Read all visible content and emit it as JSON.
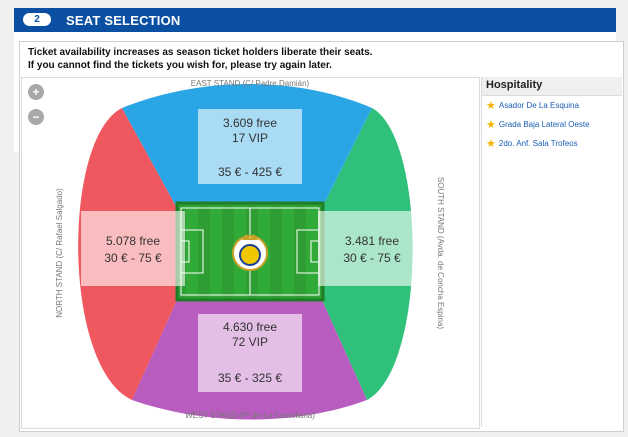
{
  "header": {
    "step": "2",
    "title": "SEAT SELECTION"
  },
  "notice": {
    "line1": "Ticket availability increases as season ticket holders liberate their seats.",
    "line2": "If you cannot find the tickets you wish for, please try again later."
  },
  "stands": {
    "east": {
      "label": "EAST STAND (C/  Padre Damián)"
    },
    "west": {
      "label": "WEST STAND (Pº de La Castellana)"
    },
    "north": {
      "label": "NORTH STAND (C/ Rafael Salgado)"
    },
    "south": {
      "label": "SOUTH STAND (Avda. de Concha Espina)"
    }
  },
  "sections": {
    "east": {
      "free": "3.609 free",
      "vip": "17 VIP",
      "price": "35 € - 425 €"
    },
    "north": {
      "free": "5.078 free",
      "price": "30 € - 75 €"
    },
    "south": {
      "free": "3.481 free",
      "price": "30 € - 75 €"
    },
    "west": {
      "free": "4.630 free",
      "vip": "72 VIP",
      "price": "35 € - 325 €"
    }
  },
  "zoom": {
    "in": "+",
    "out": "−"
  },
  "hospitality": {
    "title": "Hospitality",
    "items": [
      "Asador De La Esquina",
      "Grada Baja Lateral Oeste",
      "2do. Anf. Sala Trofeos"
    ]
  },
  "colors": {
    "east": "#2aa6e6",
    "west": "#b85cbf",
    "north": "#f0585f",
    "south": "#2fc07a",
    "pitch": "#2e9e34",
    "accent": "#0b4fa3"
  }
}
